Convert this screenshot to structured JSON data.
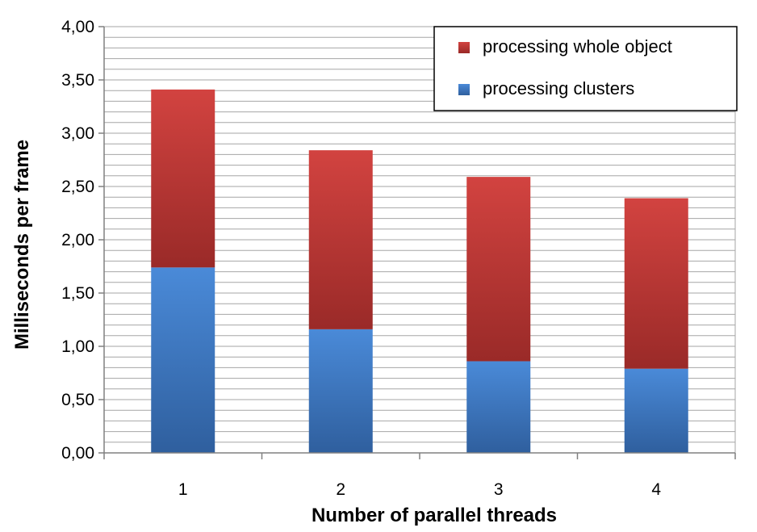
{
  "chart_data": {
    "type": "bar",
    "stacked": true,
    "categories": [
      "1",
      "2",
      "3",
      "4"
    ],
    "series": [
      {
        "name": "processing clusters",
        "values": [
          1.74,
          1.16,
          0.86,
          0.79
        ],
        "color": "#3b78c8"
      },
      {
        "name": "processing whole object",
        "values": [
          1.67,
          1.68,
          1.73,
          1.6
        ],
        "color": "#c23a38"
      }
    ],
    "ylim": [
      0,
      4
    ],
    "yticks": [
      "0,00",
      "0,50",
      "1,00",
      "1,50",
      "2,00",
      "2,50",
      "3,00",
      "3,50",
      "4,00"
    ],
    "ytick_values": [
      0,
      0.5,
      1,
      1.5,
      2,
      2.5,
      3,
      3.5,
      4
    ],
    "minor_grid_step": 0.1,
    "xlabel": "Number of parallel threads",
    "ylabel": "Milliseconds per frame",
    "grid": true,
    "legend_position": "top-right",
    "legend_order": [
      "processing whole object",
      "processing clusters"
    ]
  }
}
